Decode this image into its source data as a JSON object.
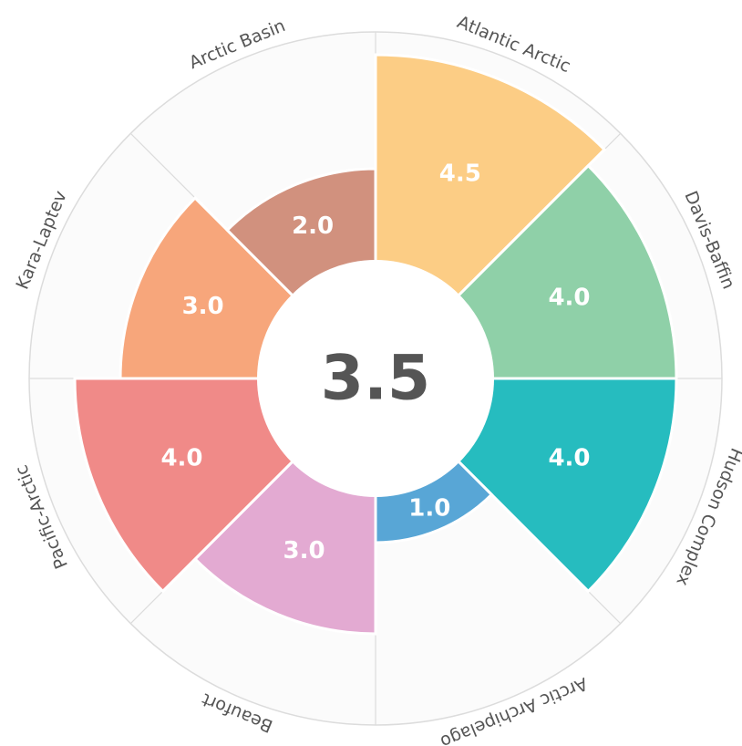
{
  "chart_data": {
    "type": "polar-area",
    "center_value": 3.5,
    "categories": [
      "Atlantic Arctic",
      "Davis-Baffin",
      "Hudson Complex",
      "Arctic Archipelago",
      "Beaufort",
      "Pacific-Arctic",
      "Kara-Laptev",
      "Arctic Basin"
    ],
    "values": [
      4.5,
      4.0,
      4.0,
      1.0,
      3.0,
      4.0,
      3.0,
      2.0
    ],
    "value_labels": [
      "4.5",
      "4.0",
      "4.0",
      "1.0",
      "3.0",
      "4.0",
      "3.0",
      "2.0"
    ],
    "colors": [
      "#fccd85",
      "#8fd0a8",
      "#26bcbf",
      "#58a6d6",
      "#e3aad2",
      "#f08a88",
      "#f7a67b",
      "#d1917e"
    ],
    "rlim": [
      0,
      5
    ]
  }
}
